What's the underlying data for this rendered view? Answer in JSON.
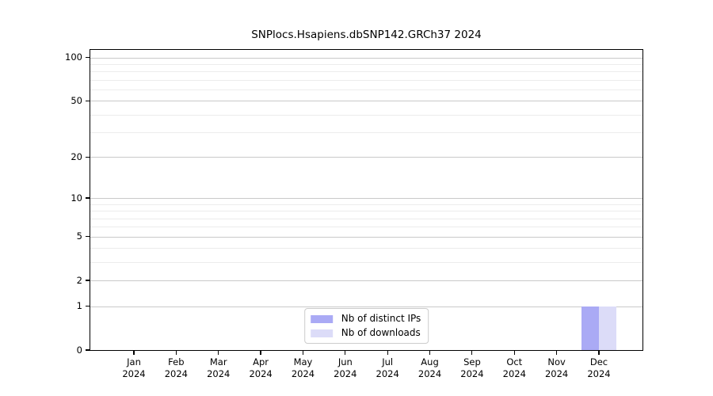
{
  "chart_data": {
    "type": "bar",
    "title": "SNPlocs.Hsapiens.dbSNP142.GRCh37 2024",
    "categories": [
      "Jan",
      "Feb",
      "Mar",
      "Apr",
      "May",
      "Jun",
      "Jul",
      "Aug",
      "Sep",
      "Oct",
      "Nov",
      "Dec"
    ],
    "category_year": "2024",
    "series": [
      {
        "name": "Nb of distinct IPs",
        "color": "#aaaaf5",
        "values": [
          0,
          0,
          0,
          0,
          0,
          0,
          0,
          0,
          0,
          0,
          0,
          1
        ]
      },
      {
        "name": "Nb of downloads",
        "color": "#dcdcf8",
        "values": [
          0,
          0,
          0,
          0,
          0,
          0,
          0,
          0,
          0,
          0,
          0,
          1
        ]
      }
    ],
    "yscale": "log1p",
    "ylim": [
      0,
      100
    ],
    "yticks": [
      0,
      1,
      2,
      5,
      10,
      20,
      50,
      100
    ],
    "minor_yticks": [
      3,
      4,
      6,
      7,
      8,
      9,
      30,
      40,
      60,
      70,
      80,
      90
    ],
    "grid": "horizontal",
    "legend_position": "lower center",
    "colors": {
      "axis": "#000000",
      "text": "#000000",
      "major_grid": "#c9c9c9",
      "minor_grid": "#ececec",
      "background": "#ffffff"
    }
  }
}
